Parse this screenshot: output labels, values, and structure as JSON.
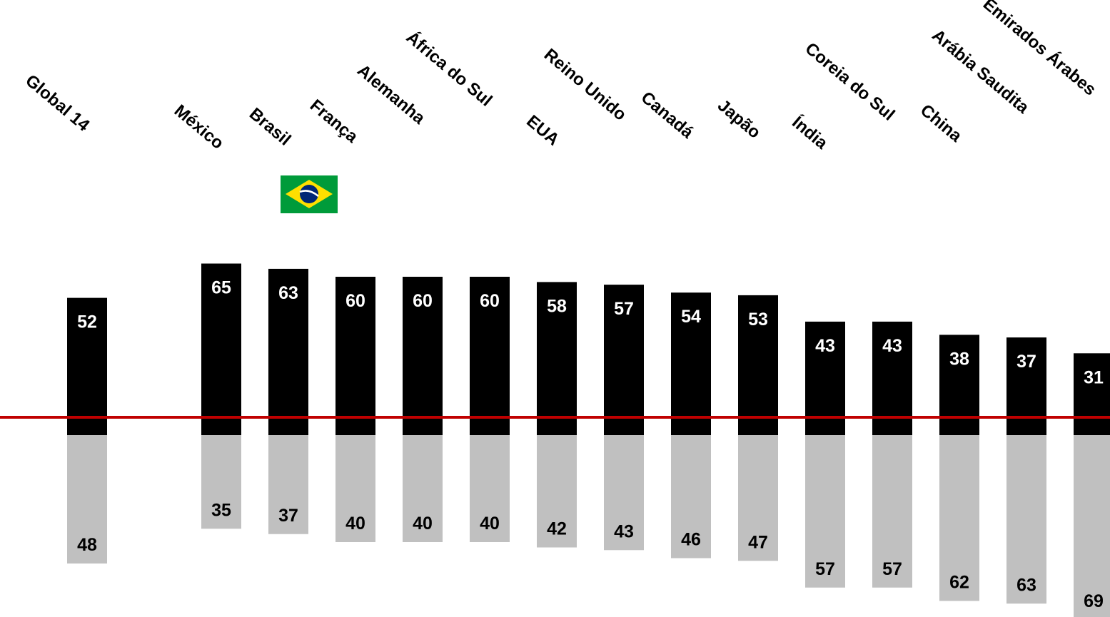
{
  "chart_data": {
    "type": "bar",
    "categories": [
      "Global 14",
      "México",
      "Brasil",
      "França",
      "Alemanha",
      "África do Sul",
      "EUA",
      "Reino Unido",
      "Canadá",
      "Japão",
      "Índia",
      "Coreia do Sul",
      "China",
      "Arábia Saudita",
      "Emirados Árabes"
    ],
    "series": [
      {
        "values": [
          52,
          65,
          63,
          60,
          60,
          60,
          58,
          57,
          54,
          53,
          43,
          43,
          38,
          37,
          31
        ],
        "color": "#000000"
      },
      {
        "values": [
          48,
          35,
          37,
          40,
          40,
          40,
          42,
          43,
          46,
          47,
          57,
          57,
          62,
          63,
          69
        ],
        "color": "#c0c0c0"
      }
    ],
    "highlight": {
      "category": "Brasil",
      "icon": "brazil-flag-icon"
    },
    "reference_line_color": "#c00000",
    "grid": false,
    "legend": "none",
    "title": "",
    "xlabel": "",
    "ylabel": ""
  }
}
